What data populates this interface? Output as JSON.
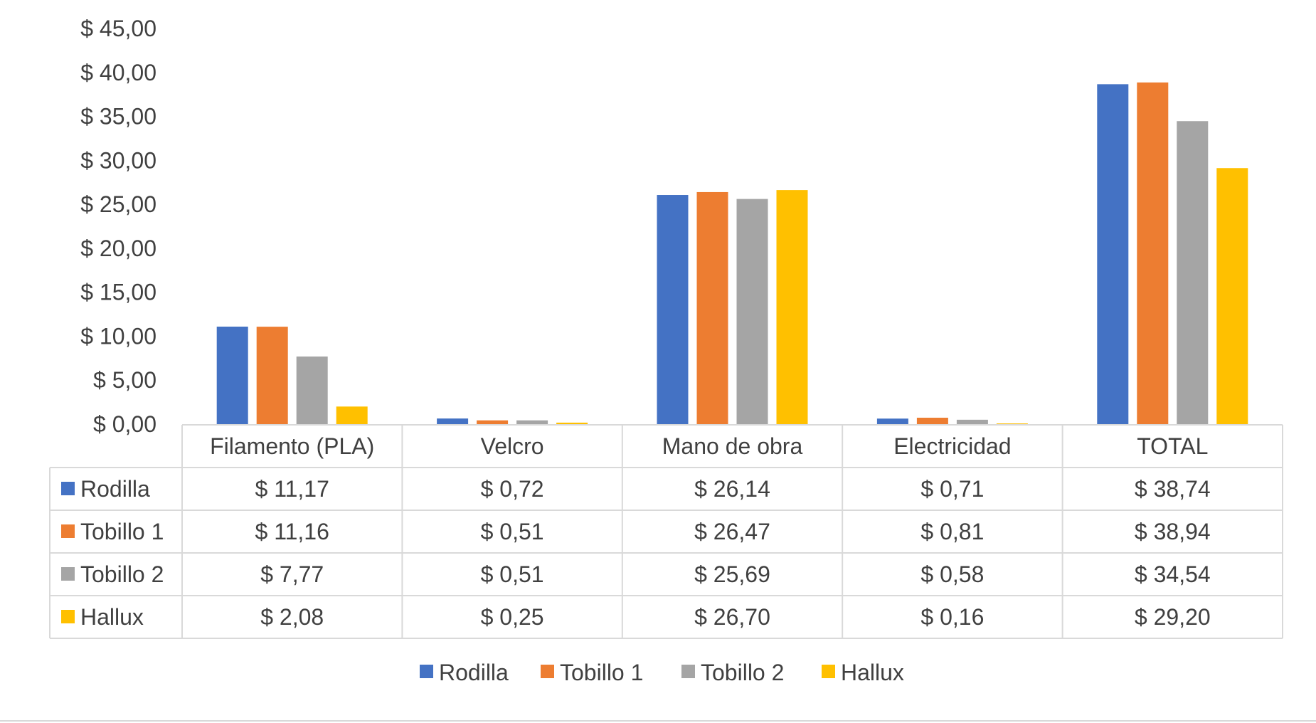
{
  "chart_data": {
    "type": "bar",
    "currency_prefix": "$ ",
    "categories": [
      "Filamento (PLA)",
      "Velcro",
      "Mano de obra",
      "Electricidad",
      "TOTAL"
    ],
    "series": [
      {
        "name": "Rodilla",
        "color": "#4472C4",
        "values": [
          11.17,
          0.72,
          26.14,
          0.71,
          38.74
        ],
        "labels": [
          "$ 11,17",
          "$ 0,72",
          "$ 26,14",
          "$ 0,71",
          "$ 38,74"
        ]
      },
      {
        "name": "Tobillo 1",
        "color": "#ED7D31",
        "values": [
          11.16,
          0.51,
          26.47,
          0.81,
          38.94
        ],
        "labels": [
          "$ 11,16",
          "$ 0,51",
          "$ 26,47",
          "$ 0,81",
          "$ 38,94"
        ]
      },
      {
        "name": "Tobillo 2",
        "color": "#A5A5A5",
        "values": [
          7.77,
          0.51,
          25.69,
          0.58,
          34.54
        ],
        "labels": [
          "$ 7,77",
          "$ 0,51",
          "$ 25,69",
          "$ 0,58",
          "$ 34,54"
        ]
      },
      {
        "name": "Hallux",
        "color": "#FFC000",
        "values": [
          2.08,
          0.25,
          26.7,
          0.16,
          29.2
        ],
        "labels": [
          "$ 2,08",
          "$ 0,25",
          "$ 26,70",
          "$ 0,16",
          "$ 29,20"
        ]
      }
    ],
    "ylim": [
      0,
      45
    ],
    "yticks": [
      0,
      5,
      10,
      15,
      20,
      25,
      30,
      35,
      40,
      45
    ],
    "ytick_labels": [
      "$ 0,00",
      "$ 5,00",
      "$ 10,00",
      "$ 15,00",
      "$ 20,00",
      "$ 25,00",
      "$ 30,00",
      "$ 35,00",
      "$ 40,00",
      "$ 45,00"
    ],
    "grid": false,
    "data_table": true,
    "legend": "bottom"
  }
}
